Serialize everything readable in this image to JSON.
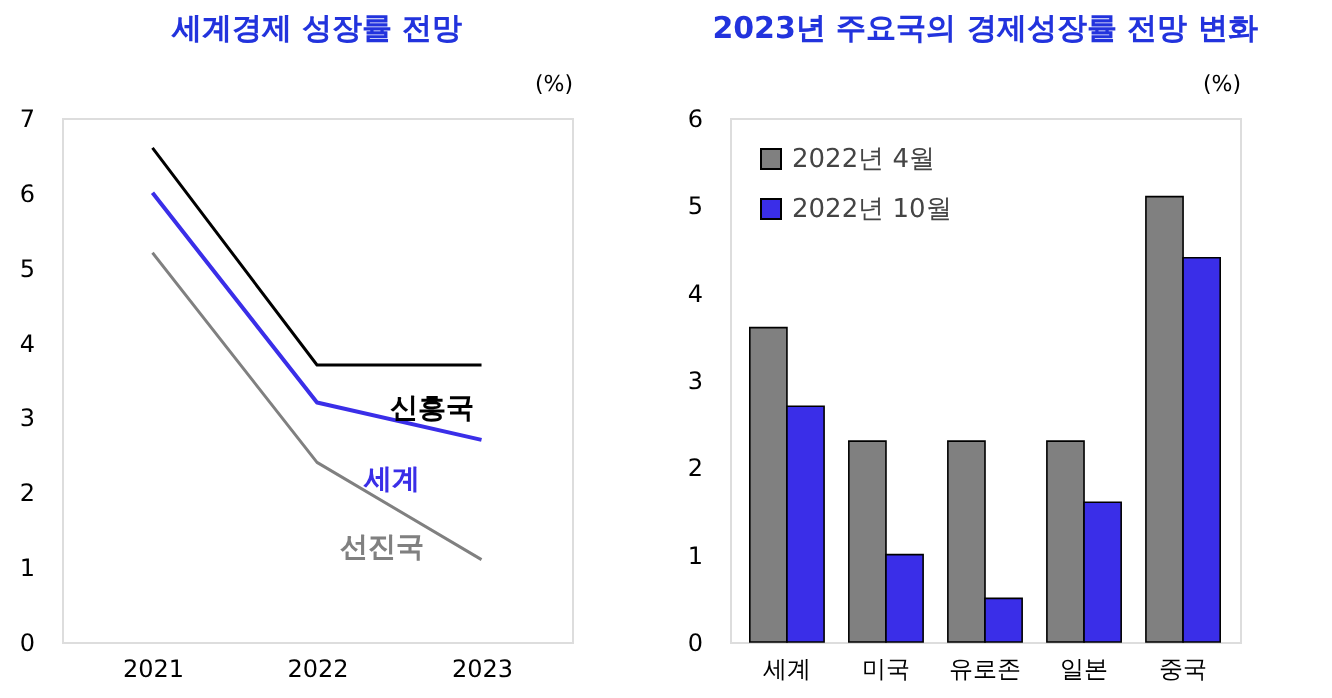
{
  "chart_data": [
    {
      "type": "line",
      "title": "세계경제 성장률 전망",
      "ylabel": "(%)",
      "categories": [
        "2021",
        "2022",
        "2023"
      ],
      "ylim": [
        0,
        7
      ],
      "yticks": [
        0,
        1,
        2,
        3,
        4,
        5,
        6,
        7
      ],
      "grid": false,
      "legend": false,
      "marker": "none",
      "series": [
        {
          "name": "신흥국",
          "color": "#000000",
          "values": [
            6.6,
            3.7,
            3.7
          ]
        },
        {
          "name": "세계",
          "color": "#3a2ee8",
          "values": [
            6.0,
            3.2,
            2.7
          ]
        },
        {
          "name": "선진국",
          "color": "#808080",
          "values": [
            5.2,
            2.4,
            1.1
          ]
        }
      ]
    },
    {
      "type": "bar",
      "title": "2023년 주요국의 경제성장률 전망 변화",
      "ylabel": "(%)",
      "categories": [
        "세계",
        "미국",
        "유로존",
        "일본",
        "중국"
      ],
      "ylim": [
        0,
        6
      ],
      "yticks": [
        0,
        1,
        2,
        3,
        4,
        5,
        6
      ],
      "grid": false,
      "legend": "top left",
      "series": [
        {
          "name": "2022년 4월",
          "color": "#808080",
          "values": [
            3.6,
            2.3,
            2.3,
            2.3,
            5.1
          ]
        },
        {
          "name": "2022년 10월",
          "color": "#3a2ee8",
          "values": [
            2.7,
            1.0,
            0.5,
            1.6,
            4.4
          ]
        }
      ]
    }
  ]
}
